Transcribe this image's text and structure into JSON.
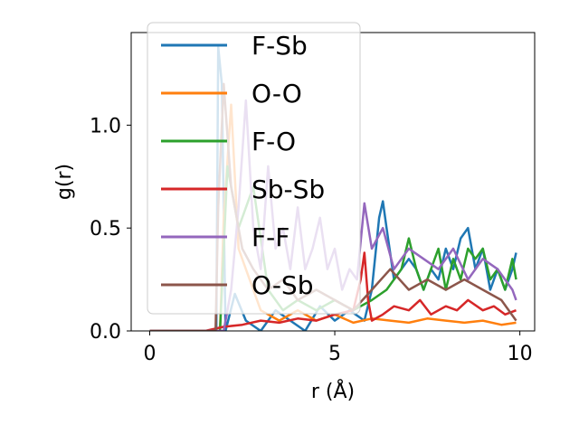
{
  "chart_data": {
    "type": "line",
    "title": "",
    "xlabel": "r (Å)",
    "ylabel": "g(r)",
    "xlim": [
      -0.5,
      10.4
    ],
    "ylim": [
      0.0,
      1.45
    ],
    "xticks": [
      0,
      5,
      10
    ],
    "xtick_labels": [
      "0",
      "5",
      "10"
    ],
    "yticks": [
      0.0,
      0.5,
      1.0
    ],
    "ytick_labels": [
      "0.0",
      "0.5",
      "1.0"
    ],
    "grid": false,
    "legend_position": "top-left",
    "series": [
      {
        "name": "F-Sb",
        "color": "#1f77b4",
        "x": [
          0,
          1.5,
          1.8,
          1.85,
          1.95,
          2.05,
          2.3,
          2.6,
          3.0,
          3.4,
          3.8,
          4.2,
          4.6,
          5.0,
          5.4,
          5.8,
          6.0,
          6.2,
          6.3,
          6.4,
          6.6,
          6.8,
          7.0,
          7.2,
          7.4,
          7.6,
          7.8,
          8.0,
          8.2,
          8.4,
          8.6,
          8.8,
          9.0,
          9.2,
          9.4,
          9.6,
          9.8,
          9.9
        ],
        "values": [
          0,
          0,
          0,
          1.38,
          1.2,
          0.0,
          0.18,
          0.05,
          0.0,
          0.1,
          0.05,
          0.0,
          0.12,
          0.05,
          0.1,
          0.05,
          0.2,
          0.55,
          0.63,
          0.5,
          0.25,
          0.3,
          0.35,
          0.3,
          0.2,
          0.3,
          0.25,
          0.4,
          0.3,
          0.45,
          0.5,
          0.3,
          0.4,
          0.2,
          0.3,
          0.2,
          0.3,
          0.38
        ]
      },
      {
        "name": "O-O",
        "color": "#ff7f0e",
        "x": [
          0,
          1.5,
          1.9,
          2.0,
          2.2,
          2.4,
          2.6,
          2.8,
          3.0,
          3.5,
          4.0,
          4.5,
          5.0,
          5.5,
          6.0,
          6.5,
          7.0,
          7.5,
          8.0,
          8.5,
          9.0,
          9.5,
          9.9
        ],
        "values": [
          0,
          0,
          0,
          0.55,
          1.1,
          0.4,
          0.3,
          0.2,
          0.1,
          0.05,
          0.1,
          0.05,
          0.08,
          0.04,
          0.06,
          0.05,
          0.04,
          0.06,
          0.05,
          0.04,
          0.05,
          0.03,
          0.04
        ]
      },
      {
        "name": "F-O",
        "color": "#2ca02c",
        "x": [
          0,
          1.5,
          1.9,
          2.1,
          2.4,
          2.8,
          3.2,
          3.6,
          4.0,
          4.5,
          5.0,
          5.5,
          6.0,
          6.4,
          6.8,
          7.0,
          7.2,
          7.4,
          7.6,
          7.8,
          8.0,
          8.2,
          8.4,
          8.6,
          8.8,
          9.0,
          9.2,
          9.4,
          9.6,
          9.8,
          9.9
        ],
        "values": [
          0,
          0,
          0,
          0.8,
          0.5,
          0.7,
          0.2,
          0.1,
          0.15,
          0.1,
          0.15,
          0.1,
          0.15,
          0.2,
          0.3,
          0.45,
          0.3,
          0.2,
          0.3,
          0.4,
          0.2,
          0.35,
          0.25,
          0.4,
          0.35,
          0.4,
          0.25,
          0.3,
          0.2,
          0.35,
          0.25
        ]
      },
      {
        "name": "Sb-Sb",
        "color": "#d62728",
        "x": [
          0,
          1.5,
          2.0,
          2.5,
          3.0,
          3.5,
          4.0,
          4.5,
          5.0,
          5.5,
          5.7,
          5.8,
          5.9,
          6.0,
          6.3,
          6.6,
          7.0,
          7.3,
          7.6,
          8.0,
          8.3,
          8.6,
          9.0,
          9.3,
          9.6,
          9.9
        ],
        "values": [
          0,
          0,
          0.02,
          0.03,
          0.05,
          0.04,
          0.06,
          0.05,
          0.08,
          0.1,
          0.25,
          0.38,
          0.15,
          0.05,
          0.08,
          0.12,
          0.1,
          0.15,
          0.08,
          0.12,
          0.1,
          0.15,
          0.1,
          0.12,
          0.08,
          0.1
        ]
      },
      {
        "name": "F-F",
        "color": "#9467bd",
        "x": [
          0,
          1.5,
          2.0,
          2.2,
          2.4,
          2.6,
          2.8,
          3.0,
          3.2,
          3.4,
          3.6,
          3.8,
          4.0,
          4.2,
          4.4,
          4.6,
          4.8,
          5.0,
          5.2,
          5.4,
          5.6,
          5.8,
          6.0,
          6.3,
          6.6,
          7.0,
          7.4,
          7.8,
          8.2,
          8.6,
          9.0,
          9.4,
          9.8,
          9.9
        ],
        "values": [
          0,
          0,
          0,
          0.2,
          0.6,
          1.12,
          0.5,
          0.3,
          0.8,
          0.4,
          0.5,
          0.3,
          0.6,
          0.3,
          0.4,
          0.55,
          0.3,
          0.4,
          0.2,
          0.3,
          0.25,
          0.62,
          0.4,
          0.5,
          0.3,
          0.4,
          0.35,
          0.3,
          0.4,
          0.25,
          0.35,
          0.3,
          0.2,
          0.15
        ]
      },
      {
        "name": "O-Sb",
        "color": "#8c564b",
        "x": [
          0,
          1.5,
          1.78,
          1.85,
          2.0,
          2.2,
          2.5,
          2.8,
          3.2,
          3.6,
          4.0,
          4.5,
          5.0,
          5.5,
          6.0,
          6.5,
          7.0,
          7.5,
          8.0,
          8.5,
          9.0,
          9.5,
          9.9
        ],
        "values": [
          0,
          0,
          0,
          0.6,
          1.2,
          0.7,
          0.4,
          0.3,
          0.2,
          0.25,
          0.15,
          0.2,
          0.15,
          0.1,
          0.2,
          0.3,
          0.2,
          0.25,
          0.2,
          0.25,
          0.2,
          0.15,
          0.05
        ]
      }
    ]
  }
}
